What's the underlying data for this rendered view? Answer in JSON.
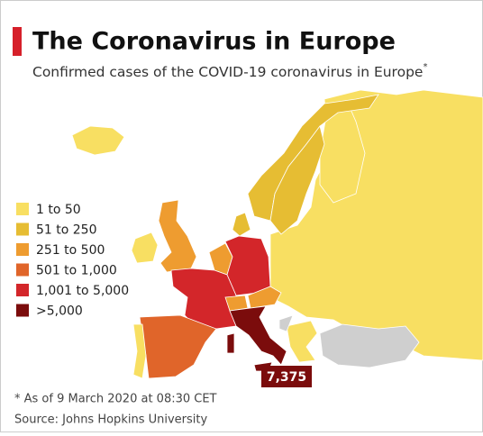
{
  "header": {
    "title": "The Coronavirus in Europe",
    "subtitle": "Confirmed cases of the COVID-19 coronavirus in Europe",
    "subtitle_mark": "*"
  },
  "legend": [
    {
      "label": "1 to 50",
      "color": "#f8df62"
    },
    {
      "label": "51 to 250",
      "color": "#e6bd33"
    },
    {
      "label": "251 to 500",
      "color": "#ee9c30"
    },
    {
      "label": "501 to 1,000",
      "color": "#e0652a"
    },
    {
      "label": "1,001 to 5,000",
      "color": "#d3262a"
    },
    {
      "label": ">5,000",
      "color": "#7b0c0c"
    }
  ],
  "annotation": "7,375",
  "footer": {
    "note": "* As of 9 March 2020 at 08:30 CET",
    "source": "Source: Johns Hopkins University"
  }
}
